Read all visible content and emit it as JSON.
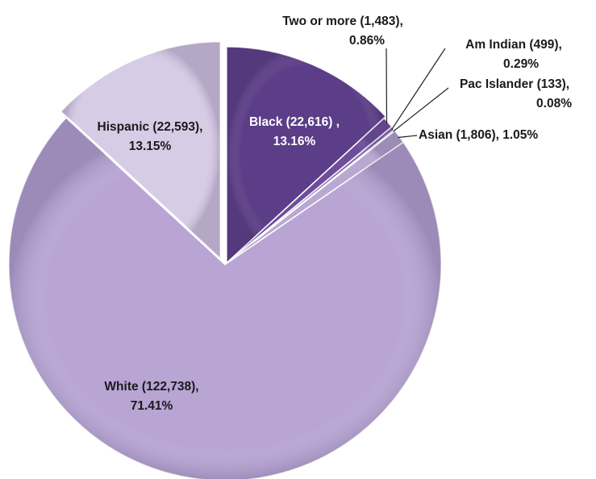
{
  "chart_data": {
    "type": "pie",
    "title": "",
    "slices": [
      {
        "name": "Black",
        "count": 22616,
        "percent": 13.16,
        "color": "#5c3d87",
        "label_lines": [
          "Black (22,616) ,",
          "13.16%"
        ],
        "label_color": "#ffffff"
      },
      {
        "name": "Two or more",
        "count": 1483,
        "percent": 0.86,
        "color": "#6e4d9a",
        "label_lines": [
          "Two or more (1,483),",
          "0.86%"
        ],
        "label_color": "#1a1a1a"
      },
      {
        "name": "Am Indian",
        "count": 499,
        "percent": 0.29,
        "color": "#8a6fb0",
        "label_lines": [
          "Am Indian (499),",
          "0.29%"
        ],
        "label_color": "#1a1a1a"
      },
      {
        "name": "Pac Islander",
        "count": 133,
        "percent": 0.08,
        "color": "#a58fc4",
        "label_lines": [
          "Pac Islander (133),",
          "0.08%"
        ],
        "label_color": "#1a1a1a"
      },
      {
        "name": "Asian",
        "count": 1806,
        "percent": 1.05,
        "color": "#b9a8d2",
        "label_lines": [
          "Asian (1,806), 1.05%"
        ],
        "label_color": "#1a1a1a"
      },
      {
        "name": "White",
        "count": 122738,
        "percent": 71.41,
        "color": "#b8a5d4",
        "label_lines": [
          "White (122,738),",
          "71.41%"
        ],
        "label_color": "#1a1a1a"
      },
      {
        "name": "Hispanic",
        "count": 22593,
        "percent": 13.15,
        "color": "#d7cce6",
        "label_lines": [
          "Hispanic (22,593),",
          "13.15%"
        ],
        "label_color": "#1a1a1a"
      }
    ]
  }
}
